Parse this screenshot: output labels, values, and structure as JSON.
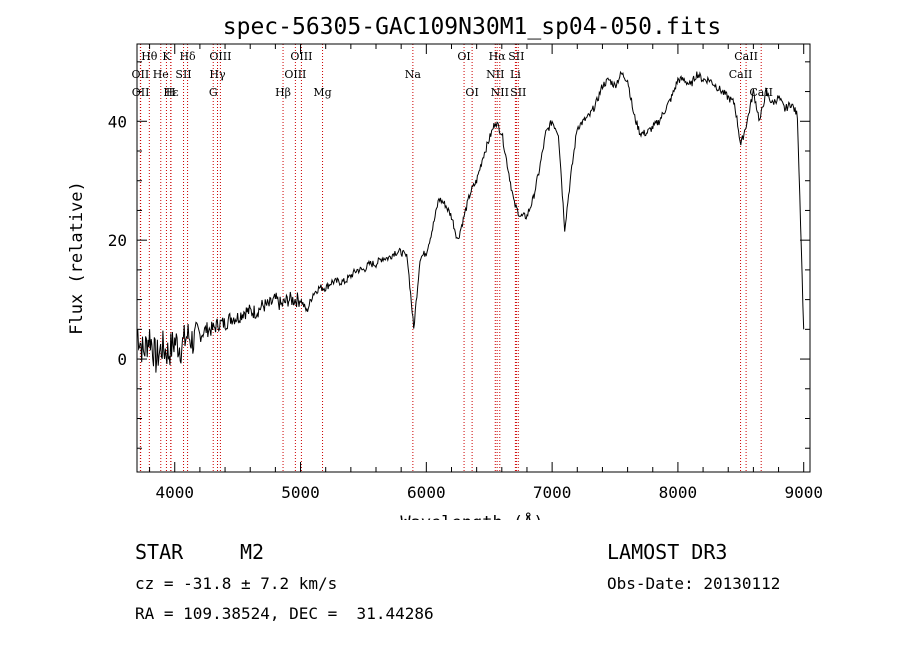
{
  "chart_data": {
    "type": "line",
    "title": "spec-56305-GAC109N30M1_sp04-050.fits",
    "xlabel": "Wavelength (Å)",
    "ylabel": "Flux (relative)",
    "xlim": [
      3700,
      9050
    ],
    "ylim": [
      -19,
      53
    ],
    "xticks": [
      4000,
      5000,
      6000,
      7000,
      8000,
      9000
    ],
    "yticks": [
      0,
      20,
      40
    ],
    "grid": false,
    "series": [
      {
        "name": "spectrum",
        "x": [
          3700,
          3750,
          3800,
          3850,
          3900,
          3950,
          4000,
          4050,
          4100,
          4150,
          4200,
          4250,
          4300,
          4350,
          4400,
          4450,
          4500,
          4550,
          4600,
          4650,
          4700,
          4750,
          4800,
          4850,
          4900,
          4950,
          5000,
          5050,
          5100,
          5150,
          5200,
          5250,
          5300,
          5350,
          5400,
          5450,
          5500,
          5550,
          5600,
          5650,
          5700,
          5750,
          5800,
          5850,
          5900,
          5950,
          6000,
          6050,
          6100,
          6150,
          6200,
          6250,
          6300,
          6350,
          6400,
          6450,
          6500,
          6550,
          6600,
          6650,
          6700,
          6750,
          6800,
          6850,
          6900,
          6950,
          7000,
          7050,
          7100,
          7150,
          7200,
          7250,
          7300,
          7350,
          7400,
          7450,
          7500,
          7550,
          7600,
          7650,
          7700,
          7750,
          7800,
          7850,
          7900,
          7950,
          8000,
          8050,
          8100,
          8150,
          8200,
          8250,
          8300,
          8350,
          8400,
          8450,
          8500,
          8550,
          8600,
          8650,
          8700,
          8750,
          8800,
          8850,
          8900,
          8950,
          9000
        ],
        "y": [
          5,
          1,
          4,
          0,
          2,
          1,
          3,
          2,
          4,
          3,
          4,
          5,
          5,
          6,
          6,
          7,
          7,
          8,
          8,
          8,
          9,
          9,
          10,
          9,
          10,
          10,
          10,
          8,
          11,
          12,
          12,
          13,
          13,
          13,
          14,
          15,
          15,
          16,
          16,
          17,
          17,
          18,
          18,
          17,
          5,
          17,
          18,
          22,
          27,
          26,
          24,
          20,
          24,
          28,
          30,
          34,
          37,
          40,
          38,
          32,
          26,
          24,
          24,
          27,
          32,
          38,
          40,
          38,
          22,
          31,
          39,
          40,
          41,
          43,
          46,
          47,
          46,
          48,
          47,
          41,
          38,
          38,
          39,
          40,
          42,
          44,
          47,
          47,
          46,
          48,
          47,
          47,
          46,
          45,
          44,
          43,
          36,
          40,
          45,
          40,
          45,
          43,
          44,
          42,
          43,
          41,
          5
        ]
      }
    ],
    "spectral_lines": [
      {
        "label": "Hθ",
        "x": 3798,
        "row": 0
      },
      {
        "label": "K",
        "x": 3934,
        "row": 0
      },
      {
        "label": "Hδ",
        "x": 4102,
        "row": 0
      },
      {
        "label": "OIII",
        "x": 4363,
        "row": 0
      },
      {
        "label": "OIII",
        "x": 5007,
        "row": 0
      },
      {
        "label": "OI",
        "x": 6300,
        "row": 0
      },
      {
        "label": "Hα",
        "x": 6563,
        "row": 0
      },
      {
        "label": "SII",
        "x": 6716,
        "row": 0
      },
      {
        "label": "CaII",
        "x": 8542,
        "row": 0
      },
      {
        "label": "OII",
        "x": 3727,
        "row": 1
      },
      {
        "label": "He",
        "x": 3889,
        "row": 1
      },
      {
        "label": "SII",
        "x": 4070,
        "row": 1
      },
      {
        "label": "Hγ",
        "x": 4340,
        "row": 1
      },
      {
        "label": "OIII",
        "x": 4959,
        "row": 1
      },
      {
        "label": "Na",
        "x": 5893,
        "row": 1
      },
      {
        "label": "NII",
        "x": 6548,
        "row": 1
      },
      {
        "label": "Li",
        "x": 6708,
        "row": 1
      },
      {
        "label": "CaII",
        "x": 8498,
        "row": 1
      },
      {
        "label": "OII",
        "x": 3729,
        "row": 2
      },
      {
        "label": "Hε",
        "x": 3970,
        "row": 2
      },
      {
        "label": "H",
        "x": 3968,
        "row": 2
      },
      {
        "label": "G",
        "x": 4306,
        "row": 2
      },
      {
        "label": "Hβ",
        "x": 4861,
        "row": 2
      },
      {
        "label": "Mg",
        "x": 5175,
        "row": 2
      },
      {
        "label": "OI",
        "x": 6364,
        "row": 2
      },
      {
        "label": "NII",
        "x": 6584,
        "row": 2
      },
      {
        "label": "SII",
        "x": 6731,
        "row": 2
      },
      {
        "label": "CaII",
        "x": 8662,
        "row": 2
      }
    ]
  },
  "info": {
    "class": "STAR",
    "subclass": "M2",
    "survey": "LAMOST DR3",
    "cz": "cz = -31.8 ± 7.2 km/s",
    "obs_date": "Obs-Date: 20130112",
    "coords": "RA = 109.38524, DEC =  31.44286"
  },
  "colors": {
    "line": "#000000",
    "marker_line": "#cc0000"
  }
}
